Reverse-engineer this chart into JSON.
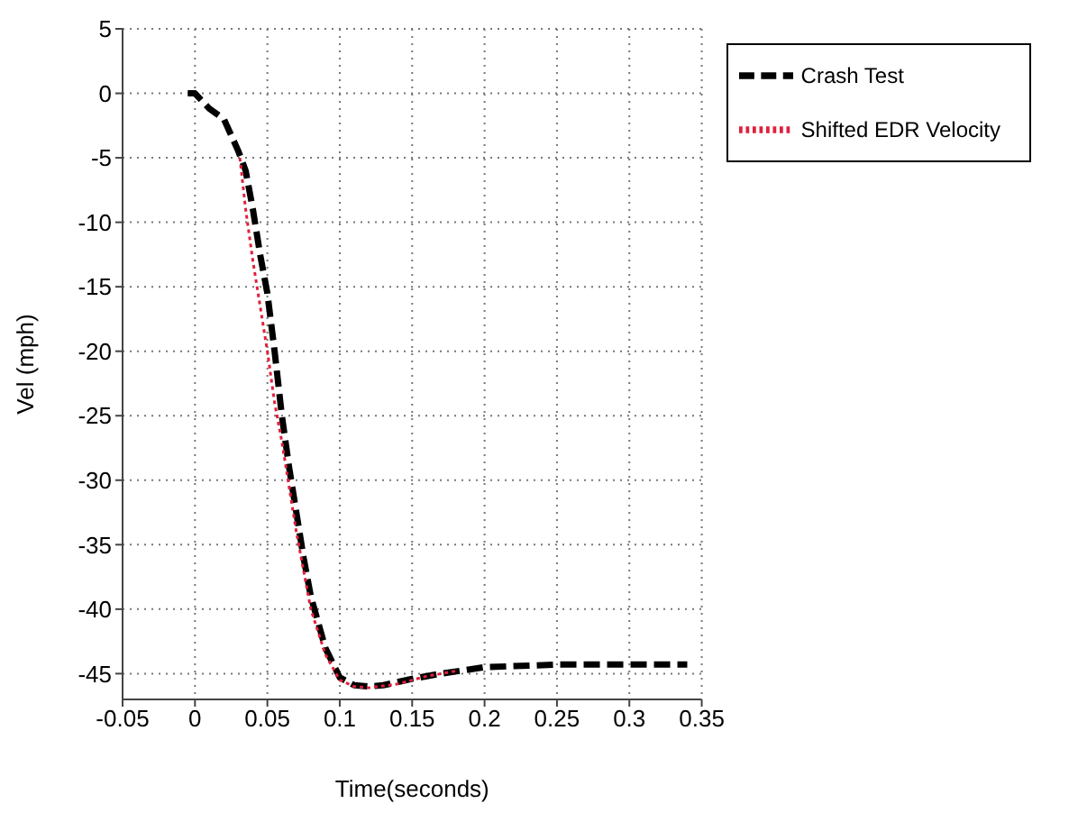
{
  "chart_data": {
    "type": "line",
    "xlabel": "Time(seconds)",
    "ylabel": "Vel (mph)",
    "xlim": [
      -0.05,
      0.35
    ],
    "xticks": [
      -0.05,
      0,
      0.05,
      0.1,
      0.15,
      0.2,
      0.25,
      0.3,
      0.35
    ],
    "ylim": [
      -47,
      5
    ],
    "yticks": [
      -45,
      -40,
      -35,
      -30,
      -25,
      -20,
      -15,
      -10,
      -5,
      0,
      5
    ],
    "grid": true,
    "legend": "top right",
    "marker": "none",
    "series": [
      {
        "name": "Crash Test",
        "color": "#000000",
        "line_style": "dashed",
        "x": [
          -0.005,
          0,
          0.01,
          0.02,
          0.03,
          0.035,
          0.04,
          0.045,
          0.05,
          0.055,
          0.06,
          0.065,
          0.07,
          0.075,
          0.08,
          0.09,
          0.1,
          0.11,
          0.12,
          0.13,
          0.15,
          0.17,
          0.2,
          0.25,
          0.3,
          0.34
        ],
        "values": [
          0,
          0,
          -1.2,
          -2,
          -4.5,
          -6,
          -9,
          -12.5,
          -15.5,
          -20,
          -25,
          -29,
          -32.5,
          -36,
          -39,
          -43,
          -45.3,
          -45.9,
          -46,
          -45.9,
          -45.4,
          -45,
          -44.5,
          -44.3,
          -44.3,
          -44.3
        ]
      },
      {
        "name": "Shifted EDR Velocity",
        "color": "#e0203c",
        "line_style": "dotted",
        "x": [
          0.031,
          0.035,
          0.04,
          0.045,
          0.05,
          0.055,
          0.06,
          0.065,
          0.07,
          0.075,
          0.08,
          0.09,
          0.1,
          0.11,
          0.12,
          0.14,
          0.16,
          0.18
        ],
        "values": [
          -5,
          -9,
          -13,
          -16.5,
          -20,
          -24,
          -27,
          -30.5,
          -34,
          -37,
          -40,
          -43.5,
          -45.5,
          -46,
          -46.1,
          -45.8,
          -45.2,
          -44.8
        ]
      }
    ]
  }
}
